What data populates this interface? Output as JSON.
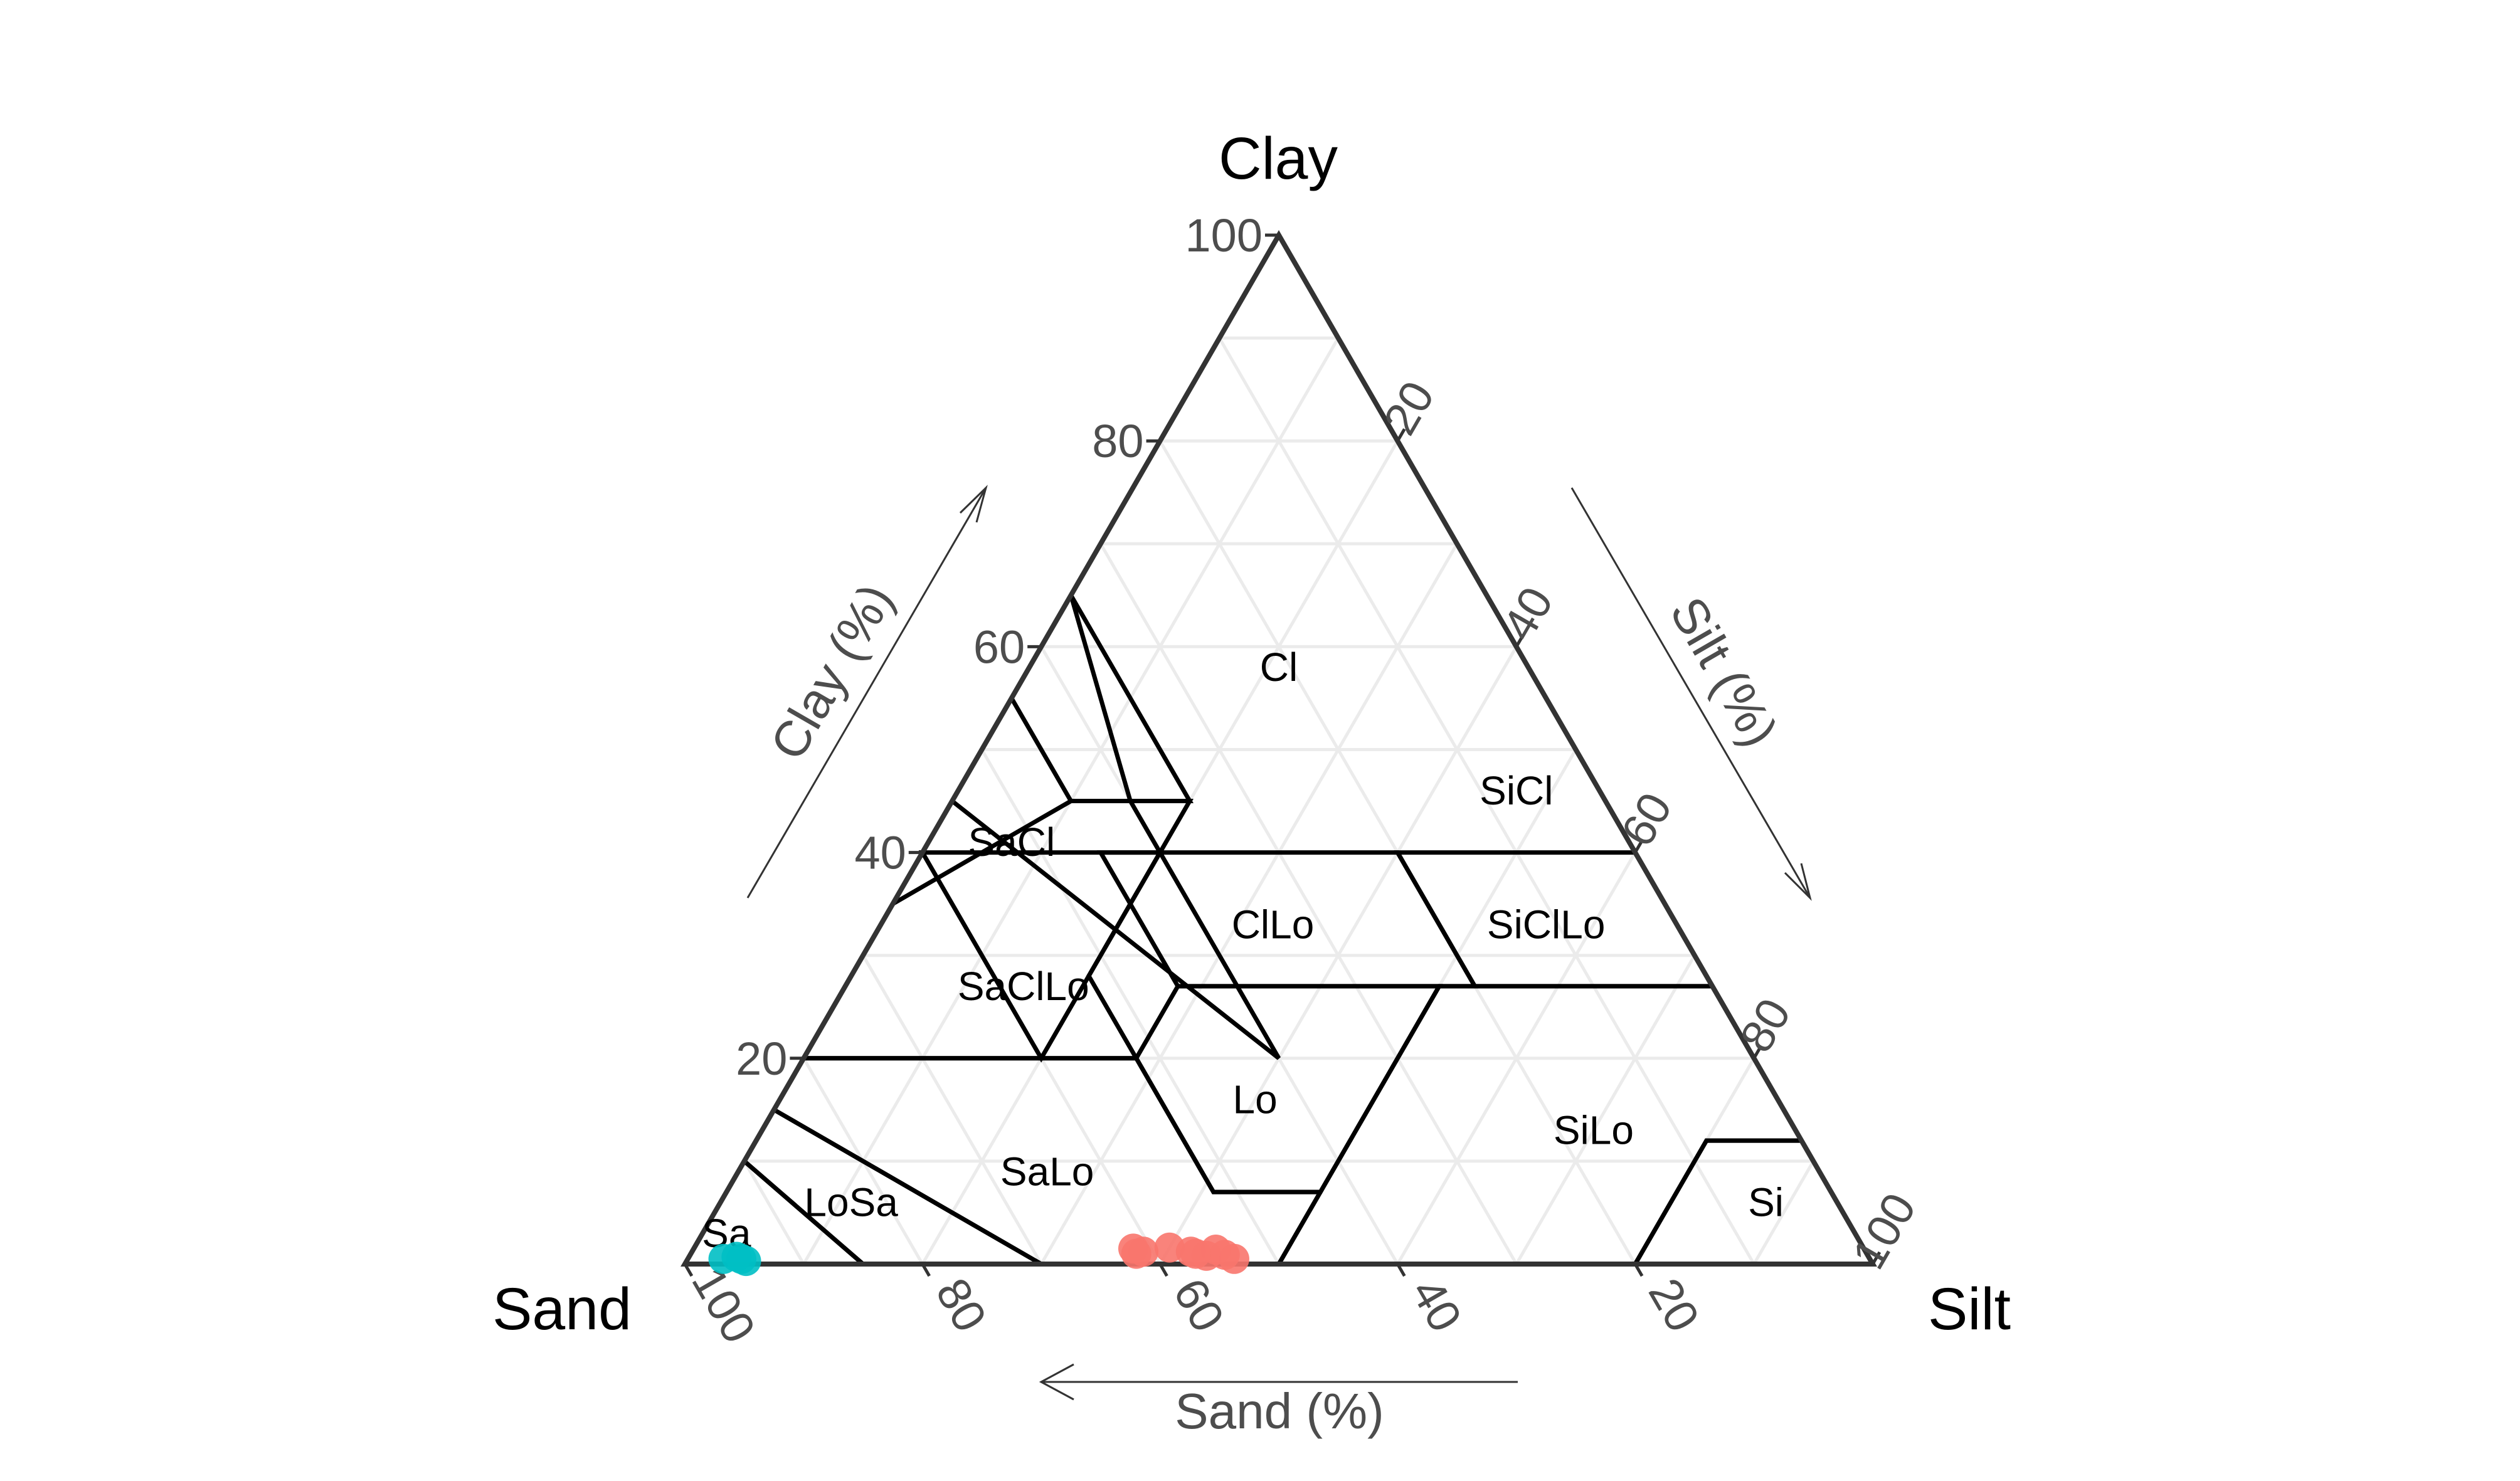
{
  "chart_data": {
    "type": "scatter",
    "subtype": "ternary",
    "vertices": {
      "top": "Clay",
      "left": "Sand",
      "right": "Silt"
    },
    "axis_titles": {
      "clay": "Clay (%)",
      "silt": "Silt (%)",
      "sand": "Sand (%)"
    },
    "ticks": {
      "clay": [
        "20",
        "40",
        "60",
        "80",
        "100"
      ],
      "silt": [
        "20",
        "40",
        "60",
        "80",
        "100"
      ],
      "sand": [
        "100",
        "80",
        "60",
        "40",
        "20"
      ]
    },
    "grid": true,
    "regions": [
      {
        "label": "Cl",
        "points": [
          [
            45,
            55,
            0
          ],
          [
            20,
            40,
            40
          ],
          [
            20,
            40,
            40
          ],
          [
            45,
            40,
            15
          ],
          [
            45,
            40,
            15
          ],
          [
            65,
            35,
            0
          ]
        ]
      },
      {
        "label": "SaCl",
        "points": [
          [
            55,
            45,
            0
          ],
          [
            65,
            35,
            0
          ],
          [
            45,
            35,
            20
          ],
          [
            45,
            45,
            10
          ]
        ]
      },
      {
        "label": "SiCl",
        "points": [
          [
            40,
            60,
            0
          ],
          [
            40,
            40,
            20
          ],
          [
            20,
            60,
            20
          ]
        ]
      },
      {
        "label": "SaClLo",
        "points": [
          [
            35,
            65,
            0
          ],
          [
            45,
            45,
            10
          ],
          [
            45,
            35,
            20
          ],
          [
            28,
            52,
            20
          ],
          [
            20,
            52,
            28
          ],
          [
            20,
            80,
            0
          ]
        ]
      },
      {
        "label": "ClLo",
        "points": [
          [
            40,
            45,
            15
          ],
          [
            40,
            20,
            40
          ],
          [
            27,
            20,
            53
          ],
          [
            27,
            45,
            28
          ]
        ]
      },
      {
        "label": "SiClLo",
        "points": [
          [
            40,
            20,
            40
          ],
          [
            40,
            0,
            60
          ],
          [
            27,
            0,
            73
          ],
          [
            27,
            20,
            53
          ]
        ]
      },
      {
        "label": "SaLo",
        "points": [
          [
            20,
            80,
            0
          ],
          [
            20,
            52,
            28
          ],
          [
            7,
            52,
            41
          ],
          [
            7,
            43,
            50
          ],
          [
            0,
            50,
            50
          ],
          [
            0,
            70,
            30
          ],
          [
            15,
            85,
            0
          ]
        ]
      },
      {
        "label": "Lo",
        "points": [
          [
            27,
            45,
            28
          ],
          [
            27,
            23,
            50
          ],
          [
            7,
            43,
            50
          ],
          [
            7,
            52,
            41
          ],
          [
            20,
            52,
            28
          ]
        ]
      },
      {
        "label": "SiLo",
        "points": [
          [
            27,
            23,
            50
          ],
          [
            27,
            0,
            73
          ],
          [
            12,
            0,
            88
          ],
          [
            12,
            8,
            80
          ],
          [
            0,
            20,
            80
          ],
          [
            0,
            50,
            50
          ]
        ]
      },
      {
        "label": "Si",
        "points": [
          [
            12,
            0,
            88
          ],
          [
            0,
            0,
            100
          ],
          [
            0,
            20,
            80
          ],
          [
            12,
            8,
            80
          ]
        ]
      },
      {
        "label": "LoSa",
        "points": [
          [
            15,
            85,
            0
          ],
          [
            0,
            70,
            30
          ],
          [
            0,
            85,
            15
          ],
          [
            10,
            90,
            0
          ]
        ]
      },
      {
        "label": "Sa",
        "points": [
          [
            10,
            90,
            0
          ],
          [
            0,
            85,
            15
          ],
          [
            0,
            100,
            0
          ]
        ]
      }
    ],
    "region_labels": [
      {
        "label": "Cl",
        "clay": 58,
        "silt": 21
      },
      {
        "label": "SiCl",
        "clay": 46,
        "silt": 47
      },
      {
        "label": "SaCl",
        "clay": 41,
        "silt": 7
      },
      {
        "label": "SaClLo",
        "clay": 27,
        "silt": 15
      },
      {
        "label": "ClLo",
        "clay": 33,
        "silt": 33
      },
      {
        "label": "SiClLo",
        "clay": 33,
        "silt": 56
      },
      {
        "label": "Lo",
        "clay": 16,
        "silt": 40
      },
      {
        "label": "SaLo",
        "clay": 9,
        "silt": 26
      },
      {
        "label": "SiLo",
        "clay": 13,
        "silt": 70
      },
      {
        "label": "Si",
        "clay": 6,
        "silt": 88
      },
      {
        "label": "LoSa",
        "clay": 6,
        "silt": 11
      },
      {
        "label": "Sa",
        "clay": 3,
        "silt": 2
      }
    ],
    "series": [
      {
        "color": "#00bfc4",
        "points": [
          {
            "clay": 0.5,
            "silt": 3
          },
          {
            "clay": 0.5,
            "silt": 4.5
          },
          {
            "clay": 0.3,
            "silt": 5
          },
          {
            "clay": 0.7,
            "silt": 4
          }
        ]
      },
      {
        "color": "#f8766d",
        "points": [
          {
            "clay": 1.5,
            "silt": 37
          },
          {
            "clay": 1.2,
            "silt": 38
          },
          {
            "clay": 1.0,
            "silt": 37.5
          },
          {
            "clay": 1.6,
            "silt": 40
          },
          {
            "clay": 1.2,
            "silt": 42
          },
          {
            "clay": 0.8,
            "silt": 43.5
          },
          {
            "clay": 1.4,
            "silt": 44
          },
          {
            "clay": 0.9,
            "silt": 45
          },
          {
            "clay": 0.5,
            "silt": 46
          },
          {
            "clay": 1.0,
            "silt": 42.5
          }
        ]
      }
    ]
  }
}
